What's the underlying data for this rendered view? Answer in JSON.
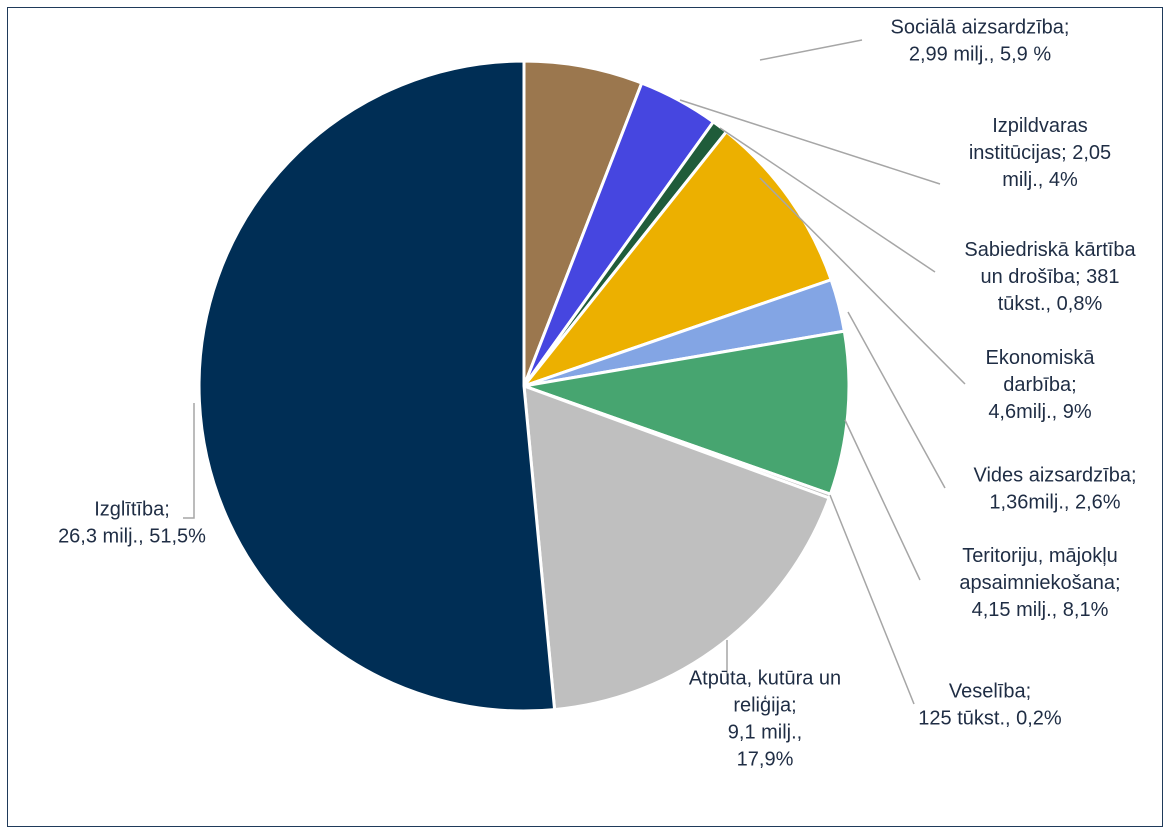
{
  "chart_data": {
    "type": "pie",
    "title": "",
    "start_angle_deg": 0,
    "direction": "clockwise",
    "slices": [
      {
        "label": "Sociālā aizsardzība;\n2,99 milj., 5,9 %",
        "value": 5.9,
        "color": "#9b774e"
      },
      {
        "label": "Izpildvaras\ninstitūcijas; 2,05\nmilj., 4%",
        "value": 4.0,
        "color": "#4646e0"
      },
      {
        "label": "Sabiedriskā kārtība\nun drošība; 381\ntūkst., 0,8%",
        "value": 0.8,
        "color": "#1f5c3a"
      },
      {
        "label": "Ekonomiskā\ndarbība;\n4,6milj., 9%",
        "value": 9.0,
        "color": "#ecb000"
      },
      {
        "label": "Vides aizsardzība;\n1,36milj., 2,6%",
        "value": 2.6,
        "color": "#83a5e4"
      },
      {
        "label": "Teritoriju, mājokļu\napsaimniekošana;\n4,15 milj., 8,1%",
        "value": 8.1,
        "color": "#47a570"
      },
      {
        "label": "Veselība;\n125 tūkst., 0,2%",
        "value": 0.2,
        "color": "#bcbcbc"
      },
      {
        "label": "Atpūta, kutūra un\nreliģija;\n9,1 milj.,\n17,9%",
        "value": 17.9,
        "color": "#bfbfbf"
      },
      {
        "label": "Izglītība;\n26,3 milj., 51,5%",
        "value": 51.5,
        "color": "#002e55"
      }
    ]
  }
}
